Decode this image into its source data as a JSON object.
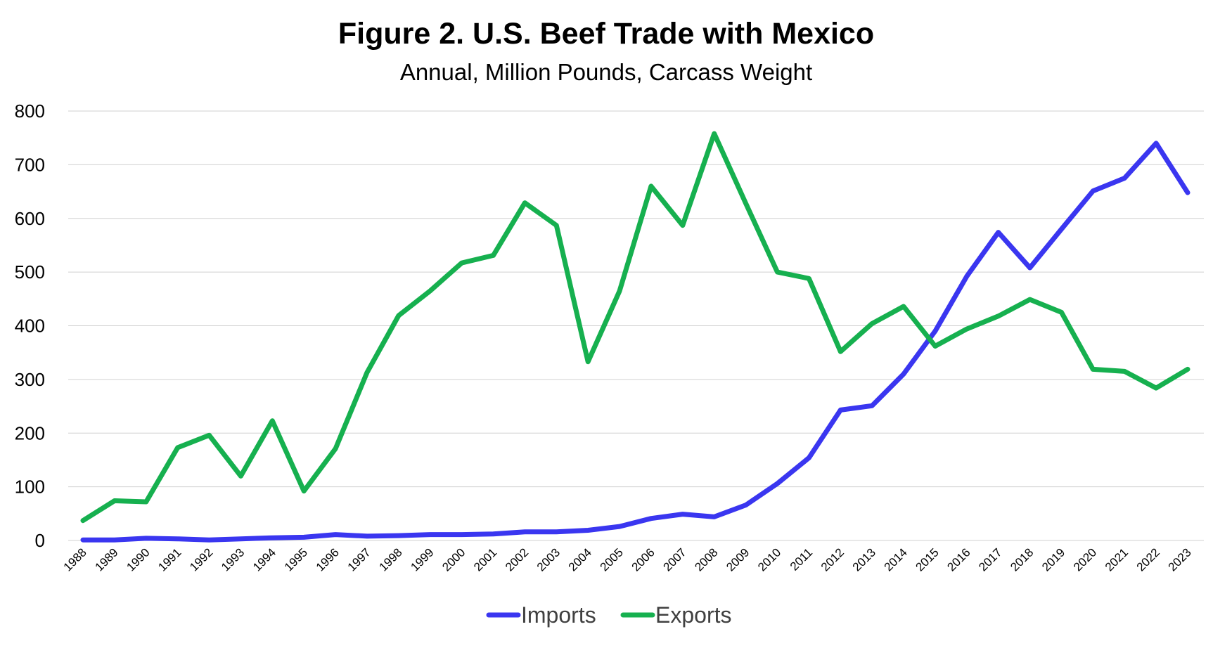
{
  "chart_data": {
    "type": "line",
    "title": "Figure 2. U.S. Beef Trade with Mexico",
    "subtitle": "Annual, Million Pounds, Carcass Weight",
    "xlabel": "",
    "ylabel": "",
    "ylim": [
      0,
      800
    ],
    "yticks": [
      0,
      100,
      200,
      300,
      400,
      500,
      600,
      700,
      800
    ],
    "grid": true,
    "legend_position": "bottom",
    "categories": [
      "1988",
      "1989",
      "1990",
      "1991",
      "1992",
      "1993",
      "1994",
      "1995",
      "1996",
      "1997",
      "1998",
      "1999",
      "2000",
      "2001",
      "2002",
      "2003",
      "2004",
      "2005",
      "2006",
      "2007",
      "2008",
      "2009",
      "2010",
      "2011",
      "2012",
      "2013",
      "2014",
      "2015",
      "2016",
      "2017",
      "2018",
      "2019",
      "2020",
      "2021",
      "2022",
      "2023"
    ],
    "series": [
      {
        "name": "Imports",
        "color": "#3a36f0",
        "values": [
          1,
          1,
          4,
          3,
          1,
          3,
          5,
          6,
          11,
          8,
          9,
          11,
          11,
          12,
          16,
          16,
          19,
          26,
          41,
          49,
          44,
          66,
          106,
          154,
          243,
          251,
          310,
          390,
          492,
          574,
          508,
          580,
          651,
          675,
          740,
          648
        ]
      },
      {
        "name": "Exports",
        "color": "#16b04f",
        "values": [
          37,
          74,
          72,
          173,
          196,
          120,
          223,
          92,
          171,
          313,
          419,
          465,
          517,
          531,
          629,
          587,
          333,
          465,
          660,
          587,
          758,
          628,
          500,
          488,
          352,
          404,
          436,
          362,
          394,
          418,
          449,
          425,
          319,
          315,
          284,
          319
        ]
      }
    ]
  }
}
